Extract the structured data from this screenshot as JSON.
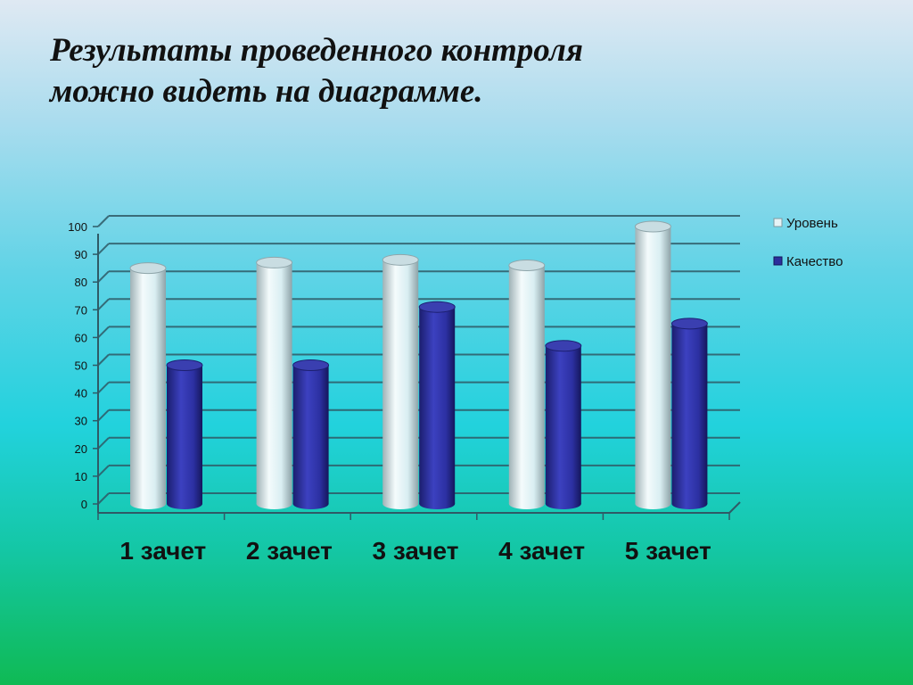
{
  "title_line1": "Результаты проведенного контроля",
  "title_line2": "можно видеть на диаграмме.",
  "colors": {
    "level": "#e6f3f6",
    "quality": "#2b2f9c"
  },
  "chart_data": {
    "type": "bar",
    "categories": [
      "1 зачет",
      "2 зачет",
      "3 зачет",
      "4 зачет",
      "5 зачет"
    ],
    "series": [
      {
        "name": "Уровень",
        "values": [
          85,
          87,
          88,
          86,
          100
        ]
      },
      {
        "name": "Качество",
        "values": [
          50,
          50,
          71,
          57,
          65
        ]
      }
    ],
    "ylim": [
      0,
      100
    ],
    "yticks": [
      0,
      10,
      20,
      30,
      40,
      50,
      60,
      70,
      80,
      90,
      100
    ],
    "grid": true,
    "legend": "right"
  }
}
